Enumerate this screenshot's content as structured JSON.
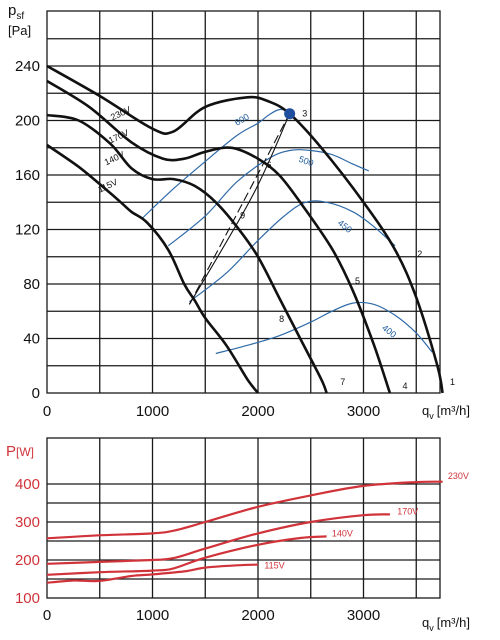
{
  "chart_data": [
    {
      "type": "line",
      "ylabel_main": "p",
      "ylabel_sub": "sf",
      "yunit": "[Pa]",
      "xlabel_main": "q",
      "xlabel_sub": "v",
      "xunit": "[m³/h]",
      "xlim": [
        0,
        4000
      ],
      "ylim": [
        0,
        240
      ],
      "x_ticks": [
        "0",
        "1000",
        "2000",
        "3000"
      ],
      "y_ticks": [
        "0",
        "40",
        "80",
        "120",
        "160",
        "200",
        "240"
      ],
      "series": [
        {
          "name": "230V",
          "x": [
            0,
            500,
            1000,
            1200,
            1500,
            1900,
            2100,
            2300,
            2600,
            3000,
            3300,
            3500,
            3700,
            3750
          ],
          "y": [
            240,
            218,
            194,
            192,
            210,
            217,
            214,
            205,
            180,
            140,
            105,
            70,
            20,
            0
          ]
        },
        {
          "name": "170V",
          "x": [
            0,
            400,
            800,
            1100,
            1300,
            1500,
            1750,
            2000,
            2200,
            2400,
            2700,
            2900,
            3100,
            3250
          ],
          "y": [
            229,
            210,
            184,
            172,
            172,
            177,
            180,
            172,
            160,
            140,
            106,
            75,
            35,
            0
          ]
        },
        {
          "name": "140V",
          "x": [
            0,
            300,
            600,
            800,
            1000,
            1200,
            1400,
            1600,
            1800,
            2000,
            2200,
            2400,
            2600,
            2650
          ],
          "y": [
            204,
            200,
            183,
            165,
            157,
            157,
            152,
            140,
            122,
            100,
            70,
            40,
            10,
            0
          ]
        },
        {
          "name": "115V",
          "x": [
            0,
            300,
            550,
            700,
            800,
            950,
            1150,
            1300,
            1400,
            1500,
            1700,
            1900,
            2000
          ],
          "y": [
            182,
            166,
            150,
            140,
            133,
            125,
            105,
            80,
            68,
            55,
            35,
            10,
            0
          ]
        }
      ],
      "efficiency_curves": [
        {
          "name": "600",
          "x": [
            900,
            1200,
            1500,
            1800,
            2000,
            2100,
            2200,
            2300
          ],
          "y": [
            128,
            150,
            170,
            189,
            198,
            204,
            208,
            207
          ]
        },
        {
          "name": "500",
          "x": [
            1150,
            1500,
            1800,
            2100,
            2300,
            2500,
            2700,
            2900,
            3050
          ],
          "y": [
            108,
            130,
            155,
            172,
            178,
            178,
            175,
            168,
            163
          ]
        },
        {
          "name": "450",
          "x": [
            1350,
            1700,
            2000,
            2250,
            2450,
            2650,
            2900,
            3100,
            3300
          ],
          "y": [
            67,
            88,
            112,
            130,
            140,
            140,
            133,
            122,
            108
          ]
        },
        {
          "name": "400",
          "x": [
            1600,
            1900,
            2200,
            2500,
            2700,
            2900,
            3100,
            3300,
            3500,
            3650
          ],
          "y": [
            29,
            35,
            42,
            52,
            60,
            66,
            65,
            57,
            44,
            30
          ]
        }
      ],
      "operating_point": {
        "x": 2300,
        "y": 205,
        "label": "3"
      },
      "system_lines": [
        {
          "x": [
            1350,
            2300
          ],
          "y": [
            65,
            205
          ]
        },
        {
          "x": [
            1350,
            1950,
            2300
          ],
          "y": [
            65,
            145,
            205
          ]
        }
      ],
      "point_labels": [
        {
          "text": "1",
          "x": 3820,
          "y": 6
        },
        {
          "text": "2",
          "x": 3510,
          "y": 100
        },
        {
          "text": "3",
          "x": 2420,
          "y": 203
        },
        {
          "text": "4",
          "x": 3370,
          "y": 3
        },
        {
          "text": "5",
          "x": 2920,
          "y": 80
        },
        {
          "text": "6",
          "x": 2080,
          "y": 165
        },
        {
          "text": "7",
          "x": 2780,
          "y": 6
        },
        {
          "text": "8",
          "x": 2200,
          "y": 52
        },
        {
          "text": "9",
          "x": 1830,
          "y": 128
        }
      ],
      "curve_labels": [
        {
          "text": "230V",
          "x": 620,
          "y": 200
        },
        {
          "text": "170V",
          "x": 600,
          "y": 183
        },
        {
          "text": "140V",
          "x": 560,
          "y": 167
        },
        {
          "text": "115V",
          "x": 500,
          "y": 147
        }
      ],
      "eff_labels": [
        {
          "text": "600",
          "x": 1800,
          "y": 196
        },
        {
          "text": "500",
          "x": 2380,
          "y": 170
        },
        {
          "text": "450",
          "x": 2750,
          "y": 124
        },
        {
          "text": "400",
          "x": 3170,
          "y": 47
        }
      ]
    },
    {
      "type": "line",
      "ylabel_main": "P",
      "yunit": "[W]",
      "xlabel_main": "q",
      "xlabel_sub": "v",
      "xunit": "[m³/h]",
      "xlim": [
        0,
        4000
      ],
      "ylim": [
        100,
        450
      ],
      "x_ticks": [
        "0",
        "1000",
        "2000",
        "3000"
      ],
      "y_ticks": [
        "100",
        "200",
        "300",
        "400"
      ],
      "series": [
        {
          "name": "230V",
          "x": [
            0,
            500,
            1000,
            1200,
            1500,
            2000,
            2500,
            3000,
            3500,
            3750
          ],
          "y": [
            257,
            265,
            270,
            277,
            300,
            340,
            370,
            395,
            405,
            406
          ]
        },
        {
          "name": "170V",
          "x": [
            0,
            500,
            1000,
            1200,
            1500,
            2000,
            2500,
            3000,
            3250
          ],
          "y": [
            190,
            195,
            200,
            205,
            230,
            270,
            300,
            318,
            320
          ]
        },
        {
          "name": "140V",
          "x": [
            0,
            500,
            1000,
            1200,
            1500,
            2000,
            2400,
            2650
          ],
          "y": [
            161,
            168,
            172,
            178,
            206,
            240,
            258,
            262
          ]
        },
        {
          "name": "115V",
          "x": [
            0,
            250,
            500,
            800,
            1000,
            1300,
            1500,
            1800,
            2000
          ],
          "y": [
            140,
            146,
            145,
            158,
            162,
            170,
            180,
            186,
            188
          ]
        }
      ],
      "curve_labels": [
        {
          "text": "230V",
          "x": 3800,
          "y": 413
        },
        {
          "text": "170V",
          "x": 3320,
          "y": 320
        },
        {
          "text": "140V",
          "x": 2700,
          "y": 262
        },
        {
          "text": "115V",
          "x": 2060,
          "y": 177
        }
      ]
    }
  ]
}
